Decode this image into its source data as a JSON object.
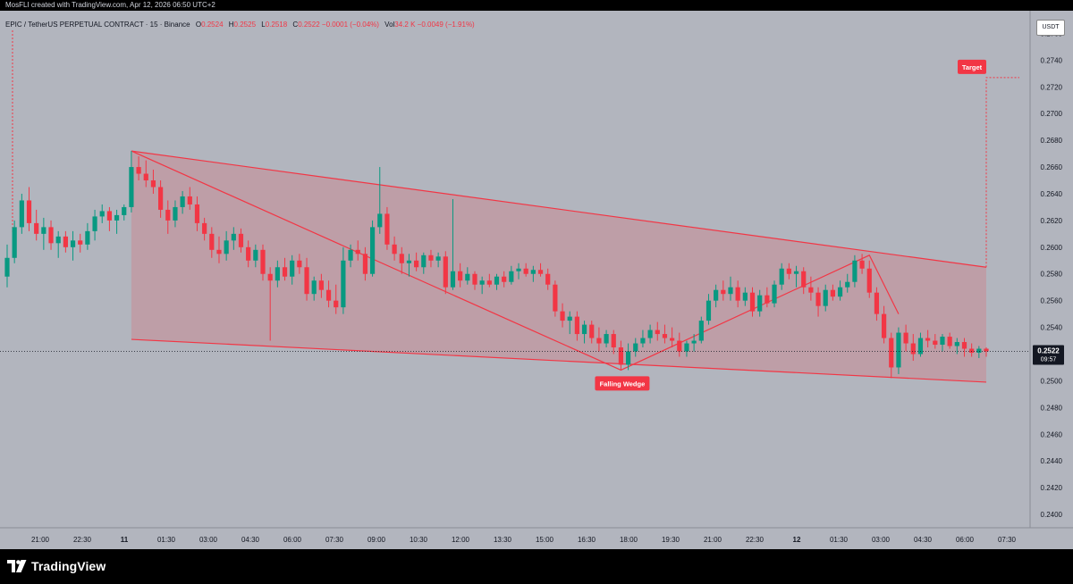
{
  "header": {
    "creator": "MosFLI created with TradingView.com, Apr 12, 2026 06:50 UTC+2"
  },
  "legend": {
    "symbol": "EPIC / TetherUS PERPETUAL CONTRACT · 15 · Binance",
    "o_label": "O",
    "o_value": "0.2524",
    "h_label": "H",
    "h_value": "0.2525",
    "l_label": "L",
    "l_value": "0.2518",
    "c_label": "C",
    "c_value": "0.2522",
    "change": "−0.0001 (−0.04%)",
    "vol_label": "Vol",
    "vol_value": "34.2 K",
    "vol_change": "−0.0049 (−1.91%)"
  },
  "currency": "USDT",
  "footer": {
    "brand": "TradingView"
  },
  "chart_data": {
    "type": "candlestick",
    "interval": "15",
    "price_axis": {
      "side": "right",
      "ylim": [
        0.239,
        0.2775
      ],
      "ticks": [
        "0.2400",
        "0.2420",
        "0.2440",
        "0.2460",
        "0.2480",
        "0.2500",
        "0.2520",
        "0.2540",
        "0.2560",
        "0.2580",
        "0.2600",
        "0.2620",
        "0.2640",
        "0.2660",
        "0.2680",
        "0.2700",
        "0.2720",
        "0.2740",
        "0.2760"
      ]
    },
    "time_axis": {
      "ticks": [
        {
          "label": "21:00",
          "bold": false
        },
        {
          "label": "22:30",
          "bold": false
        },
        {
          "label": "11",
          "bold": true
        },
        {
          "label": "01:30",
          "bold": false
        },
        {
          "label": "03:00",
          "bold": false
        },
        {
          "label": "04:30",
          "bold": false
        },
        {
          "label": "06:00",
          "bold": false
        },
        {
          "label": "07:30",
          "bold": false
        },
        {
          "label": "09:00",
          "bold": false
        },
        {
          "label": "10:30",
          "bold": false
        },
        {
          "label": "12:00",
          "bold": false
        },
        {
          "label": "13:30",
          "bold": false
        },
        {
          "label": "15:00",
          "bold": false
        },
        {
          "label": "16:30",
          "bold": false
        },
        {
          "label": "18:00",
          "bold": false
        },
        {
          "label": "19:30",
          "bold": false
        },
        {
          "label": "21:00",
          "bold": false
        },
        {
          "label": "22:30",
          "bold": false
        },
        {
          "label": "12",
          "bold": true
        },
        {
          "label": "01:30",
          "bold": false
        },
        {
          "label": "03:00",
          "bold": false
        },
        {
          "label": "04:30",
          "bold": false
        },
        {
          "label": "06:00",
          "bold": false
        },
        {
          "label": "07:30",
          "bold": false
        }
      ]
    },
    "last_price": {
      "value": 0.2522,
      "label": "0.2522",
      "countdown": "09:57"
    },
    "colors": {
      "up": "#089981",
      "down": "#f23645",
      "background": "#b2b5be",
      "pattern": "#f23645"
    },
    "candles": [
      [
        0.2578,
        0.2602,
        0.257,
        0.2592
      ],
      [
        0.2592,
        0.262,
        0.2588,
        0.2615
      ],
      [
        0.2615,
        0.264,
        0.261,
        0.2635
      ],
      [
        0.2635,
        0.2645,
        0.2612,
        0.2618
      ],
      [
        0.2618,
        0.2628,
        0.2605,
        0.261
      ],
      [
        0.261,
        0.2622,
        0.2598,
        0.2615
      ],
      [
        0.2615,
        0.262,
        0.2598,
        0.2603
      ],
      [
        0.2603,
        0.2612,
        0.2592,
        0.2608
      ],
      [
        0.2608,
        0.2612,
        0.2596,
        0.26
      ],
      [
        0.26,
        0.2612,
        0.259,
        0.2605
      ],
      [
        0.2605,
        0.261,
        0.2596,
        0.2602
      ],
      [
        0.2602,
        0.2618,
        0.2598,
        0.2612
      ],
      [
        0.2612,
        0.2628,
        0.2605,
        0.2623
      ],
      [
        0.2623,
        0.2632,
        0.2618,
        0.2627
      ],
      [
        0.2627,
        0.263,
        0.2612,
        0.262
      ],
      [
        0.262,
        0.2628,
        0.261,
        0.2624
      ],
      [
        0.2624,
        0.2632,
        0.262,
        0.263
      ],
      [
        0.263,
        0.2672,
        0.2626,
        0.266
      ],
      [
        0.266,
        0.2668,
        0.265,
        0.2655
      ],
      [
        0.2655,
        0.2665,
        0.2645,
        0.265
      ],
      [
        0.265,
        0.2658,
        0.264,
        0.2645
      ],
      [
        0.2645,
        0.265,
        0.2622,
        0.2628
      ],
      [
        0.2628,
        0.2635,
        0.261,
        0.262
      ],
      [
        0.262,
        0.2635,
        0.2615,
        0.263
      ],
      [
        0.263,
        0.2642,
        0.2625,
        0.2638
      ],
      [
        0.2638,
        0.2645,
        0.2628,
        0.2632
      ],
      [
        0.2632,
        0.2638,
        0.2612,
        0.2618
      ],
      [
        0.2618,
        0.2622,
        0.2605,
        0.261
      ],
      [
        0.261,
        0.2615,
        0.2592,
        0.2598
      ],
      [
        0.2598,
        0.2608,
        0.2588,
        0.2595
      ],
      [
        0.2595,
        0.2612,
        0.259,
        0.2605
      ],
      [
        0.2605,
        0.2615,
        0.2598,
        0.261
      ],
      [
        0.261,
        0.2614,
        0.2596,
        0.26
      ],
      [
        0.26,
        0.2605,
        0.2585,
        0.259
      ],
      [
        0.259,
        0.2602,
        0.2585,
        0.2598
      ],
      [
        0.2598,
        0.2602,
        0.2575,
        0.258
      ],
      [
        0.258,
        0.2585,
        0.253,
        0.2575
      ],
      [
        0.2575,
        0.259,
        0.257,
        0.2585
      ],
      [
        0.2585,
        0.2592,
        0.2575,
        0.2578
      ],
      [
        0.2578,
        0.2594,
        0.2572,
        0.259
      ],
      [
        0.259,
        0.2595,
        0.258,
        0.2585
      ],
      [
        0.2585,
        0.2592,
        0.256,
        0.2565
      ],
      [
        0.2565,
        0.2578,
        0.256,
        0.2575
      ],
      [
        0.2575,
        0.258,
        0.2562,
        0.2568
      ],
      [
        0.2568,
        0.2575,
        0.2555,
        0.256
      ],
      [
        0.256,
        0.2572,
        0.255,
        0.2555
      ],
      [
        0.2555,
        0.26,
        0.255,
        0.259
      ],
      [
        0.259,
        0.2602,
        0.2585,
        0.2598
      ],
      [
        0.2598,
        0.2605,
        0.259,
        0.2595
      ],
      [
        0.2595,
        0.26,
        0.2575,
        0.258
      ],
      [
        0.258,
        0.262,
        0.2578,
        0.2615
      ],
      [
        0.2615,
        0.266,
        0.261,
        0.2625
      ],
      [
        0.2625,
        0.263,
        0.2598,
        0.2602
      ],
      [
        0.2602,
        0.2608,
        0.259,
        0.2595
      ],
      [
        0.2595,
        0.26,
        0.258,
        0.2588
      ],
      [
        0.2588,
        0.2595,
        0.2578,
        0.259
      ],
      [
        0.259,
        0.2596,
        0.2582,
        0.2585
      ],
      [
        0.2585,
        0.2596,
        0.258,
        0.2594
      ],
      [
        0.2594,
        0.2598,
        0.2585,
        0.259
      ],
      [
        0.259,
        0.2596,
        0.2585,
        0.2593
      ],
      [
        0.2593,
        0.2597,
        0.2565,
        0.257
      ],
      [
        0.257,
        0.2636,
        0.2568,
        0.2582
      ],
      [
        0.2582,
        0.2588,
        0.257,
        0.2575
      ],
      [
        0.2575,
        0.2585,
        0.2572,
        0.258
      ],
      [
        0.258,
        0.2582,
        0.2568,
        0.2572
      ],
      [
        0.2572,
        0.2578,
        0.2565,
        0.2575
      ],
      [
        0.2575,
        0.258,
        0.257,
        0.2572
      ],
      [
        0.2572,
        0.258,
        0.2568,
        0.2578
      ],
      [
        0.2578,
        0.2582,
        0.257,
        0.2574
      ],
      [
        0.2574,
        0.2586,
        0.2572,
        0.2582
      ],
      [
        0.2582,
        0.2588,
        0.2576,
        0.2584
      ],
      [
        0.2584,
        0.2588,
        0.2578,
        0.258
      ],
      [
        0.258,
        0.2586,
        0.2574,
        0.2583
      ],
      [
        0.2583,
        0.2588,
        0.2578,
        0.258
      ],
      [
        0.258,
        0.2584,
        0.2568,
        0.2572
      ],
      [
        0.2572,
        0.2575,
        0.2548,
        0.2552
      ],
      [
        0.2552,
        0.2558,
        0.254,
        0.2545
      ],
      [
        0.2545,
        0.2552,
        0.2535,
        0.2548
      ],
      [
        0.2548,
        0.2552,
        0.253,
        0.2535
      ],
      [
        0.2535,
        0.2545,
        0.2528,
        0.2542
      ],
      [
        0.2542,
        0.2545,
        0.2528,
        0.2532
      ],
      [
        0.2532,
        0.254,
        0.2522,
        0.2528
      ],
      [
        0.2528,
        0.2538,
        0.2525,
        0.2535
      ],
      [
        0.2535,
        0.2538,
        0.252,
        0.2525
      ],
      [
        0.2525,
        0.253,
        0.2508,
        0.2512
      ],
      [
        0.2512,
        0.2528,
        0.2508,
        0.2522
      ],
      [
        0.2522,
        0.2532,
        0.2518,
        0.2528
      ],
      [
        0.2528,
        0.2538,
        0.2525,
        0.2532
      ],
      [
        0.2532,
        0.2542,
        0.2528,
        0.2538
      ],
      [
        0.2538,
        0.2544,
        0.253,
        0.2535
      ],
      [
        0.2535,
        0.2542,
        0.2528,
        0.2532
      ],
      [
        0.2532,
        0.254,
        0.2525,
        0.253
      ],
      [
        0.253,
        0.2536,
        0.2518,
        0.2522
      ],
      [
        0.2522,
        0.253,
        0.2518,
        0.2528
      ],
      [
        0.2528,
        0.2535,
        0.2522,
        0.253
      ],
      [
        0.253,
        0.2548,
        0.2528,
        0.2545
      ],
      [
        0.2545,
        0.2565,
        0.2542,
        0.256
      ],
      [
        0.256,
        0.2572,
        0.2555,
        0.2568
      ],
      [
        0.2568,
        0.2575,
        0.256,
        0.2565
      ],
      [
        0.2565,
        0.2578,
        0.256,
        0.257
      ],
      [
        0.257,
        0.2575,
        0.2555,
        0.256
      ],
      [
        0.256,
        0.257,
        0.2556,
        0.2566
      ],
      [
        0.2566,
        0.257,
        0.2548,
        0.2552
      ],
      [
        0.2552,
        0.2568,
        0.2548,
        0.2564
      ],
      [
        0.2564,
        0.257,
        0.2555,
        0.2558
      ],
      [
        0.2558,
        0.2575,
        0.2555,
        0.2572
      ],
      [
        0.2572,
        0.2588,
        0.2568,
        0.2584
      ],
      [
        0.2584,
        0.2588,
        0.2576,
        0.258
      ],
      [
        0.258,
        0.2586,
        0.257,
        0.2582
      ],
      [
        0.2582,
        0.2585,
        0.2565,
        0.257
      ],
      [
        0.257,
        0.2578,
        0.256,
        0.2566
      ],
      [
        0.2566,
        0.257,
        0.2548,
        0.2556
      ],
      [
        0.2556,
        0.2572,
        0.2552,
        0.2568
      ],
      [
        0.2568,
        0.2572,
        0.256,
        0.2563
      ],
      [
        0.2563,
        0.2575,
        0.256,
        0.257
      ],
      [
        0.257,
        0.258,
        0.2566,
        0.2574
      ],
      [
        0.2574,
        0.2594,
        0.257,
        0.259
      ],
      [
        0.259,
        0.2595,
        0.258,
        0.2584
      ],
      [
        0.2584,
        0.259,
        0.2562,
        0.2566
      ],
      [
        0.2566,
        0.257,
        0.2545,
        0.255
      ],
      [
        0.255,
        0.2556,
        0.2528,
        0.2532
      ],
      [
        0.2532,
        0.2536,
        0.2502,
        0.251
      ],
      [
        0.251,
        0.254,
        0.2505,
        0.2536
      ],
      [
        0.2536,
        0.2542,
        0.2522,
        0.2528
      ],
      [
        0.2528,
        0.2535,
        0.2515,
        0.252
      ],
      [
        0.252,
        0.2536,
        0.2518,
        0.2532
      ],
      [
        0.2532,
        0.2538,
        0.2525,
        0.253
      ],
      [
        0.253,
        0.2535,
        0.2524,
        0.2527
      ],
      [
        0.2527,
        0.2535,
        0.2522,
        0.2533
      ],
      [
        0.2533,
        0.2536,
        0.2524,
        0.2526
      ],
      [
        0.2526,
        0.2532,
        0.252,
        0.2529
      ],
      [
        0.2529,
        0.2532,
        0.2518,
        0.2524
      ],
      [
        0.2524,
        0.2528,
        0.2518,
        0.2521
      ],
      [
        0.2521,
        0.2526,
        0.2517,
        0.2524
      ],
      [
        0.2524,
        0.2525,
        0.2518,
        0.2522
      ]
    ],
    "annotations": [
      {
        "type": "pattern_label",
        "text": "Falling Wedge"
      },
      {
        "type": "target_label",
        "text": "Target"
      }
    ]
  }
}
